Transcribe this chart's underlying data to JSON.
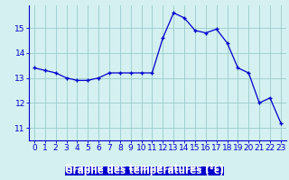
{
  "hours": [
    0,
    1,
    2,
    3,
    4,
    5,
    6,
    7,
    8,
    9,
    10,
    11,
    12,
    13,
    14,
    15,
    16,
    17,
    18,
    19,
    20,
    21,
    22,
    23
  ],
  "temps": [
    13.4,
    13.3,
    13.2,
    13.0,
    12.9,
    12.9,
    13.0,
    13.2,
    13.2,
    13.2,
    13.2,
    13.2,
    14.6,
    15.6,
    15.4,
    14.9,
    14.8,
    14.95,
    14.4,
    13.4,
    13.2,
    12.0,
    12.2,
    11.2
  ],
  "line_color": "#0000cc",
  "marker": "+",
  "bg_color": "#d4f0f0",
  "grid_color": "#99cccc",
  "axis_color": "#0000cc",
  "xlabel": "Graphe des températures (°c)",
  "xlabel_color": "#ffffff",
  "xlabel_bg": "#0000cc",
  "ylim": [
    10.5,
    15.9
  ],
  "yticks": [
    11,
    12,
    13,
    14,
    15
  ],
  "xticks": [
    0,
    1,
    2,
    3,
    4,
    5,
    6,
    7,
    8,
    9,
    10,
    11,
    12,
    13,
    14,
    15,
    16,
    17,
    18,
    19,
    20,
    21,
    22,
    23
  ],
  "tick_fontsize": 6.5,
  "label_fontsize": 7.5
}
